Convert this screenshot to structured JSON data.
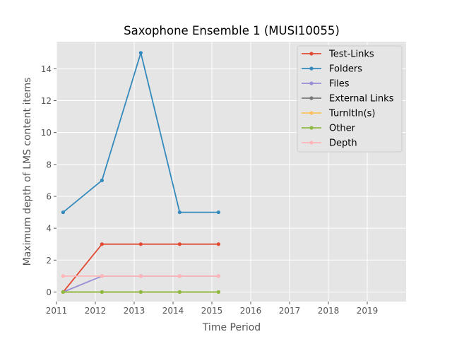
{
  "chart_data": {
    "type": "line",
    "title": "Saxophone Ensemble 1 (MUSI10055)",
    "xlabel": "Time Period",
    "ylabel": "Maximum depth of LMS content items",
    "xlim": [
      2011,
      2020
    ],
    "ylim": [
      -0.6,
      15.7
    ],
    "xticks": [
      2011,
      2012,
      2013,
      2014,
      2015,
      2016,
      2017,
      2018,
      2019
    ],
    "xtick_labels": [
      "2011",
      "2012",
      "2013",
      "2014",
      "2015",
      "2016",
      "2017",
      "2018",
      "2019"
    ],
    "yticks": [
      0,
      2,
      4,
      6,
      8,
      10,
      12,
      14
    ],
    "ytick_labels": [
      "0",
      "2",
      "4",
      "6",
      "8",
      "10",
      "12",
      "14"
    ],
    "grid": true,
    "legend_position": "top-right",
    "background": "#e5e5e5",
    "series": [
      {
        "name": "Test-Links",
        "color": "#e24a33",
        "x": [
          2011.17,
          2012.17,
          2013.17,
          2014.17,
          2015.17
        ],
        "y": [
          0,
          3,
          3,
          3,
          3
        ]
      },
      {
        "name": "Folders",
        "color": "#348abd",
        "x": [
          2011.17,
          2012.17,
          2013.17,
          2014.17,
          2015.17
        ],
        "y": [
          5,
          7,
          15,
          5,
          5
        ]
      },
      {
        "name": "Files",
        "color": "#988ed5",
        "x": [
          2011.17,
          2012.17,
          2013.17,
          2014.17,
          2015.17
        ],
        "y": [
          0,
          1,
          1,
          1,
          1
        ]
      },
      {
        "name": "External Links",
        "color": "#777777",
        "x": [
          2011.17,
          2012.17,
          2013.17,
          2014.17,
          2015.17
        ],
        "y": [
          0,
          0,
          0,
          0,
          0
        ]
      },
      {
        "name": "TurnItIn(s)",
        "color": "#fbc15e",
        "x": [
          2011.17,
          2012.17,
          2013.17,
          2014.17,
          2015.17
        ],
        "y": [
          0,
          0,
          0,
          0,
          0
        ]
      },
      {
        "name": "Other",
        "color": "#8eba42",
        "x": [
          2011.17,
          2012.17,
          2013.17,
          2014.17,
          2015.17
        ],
        "y": [
          0,
          0,
          0,
          0,
          0
        ]
      },
      {
        "name": "Depth",
        "color": "#ffb5b8",
        "x": [
          2011.17,
          2012.17,
          2013.17,
          2014.17,
          2015.17
        ],
        "y": [
          1,
          1,
          1,
          1,
          1
        ]
      }
    ]
  }
}
